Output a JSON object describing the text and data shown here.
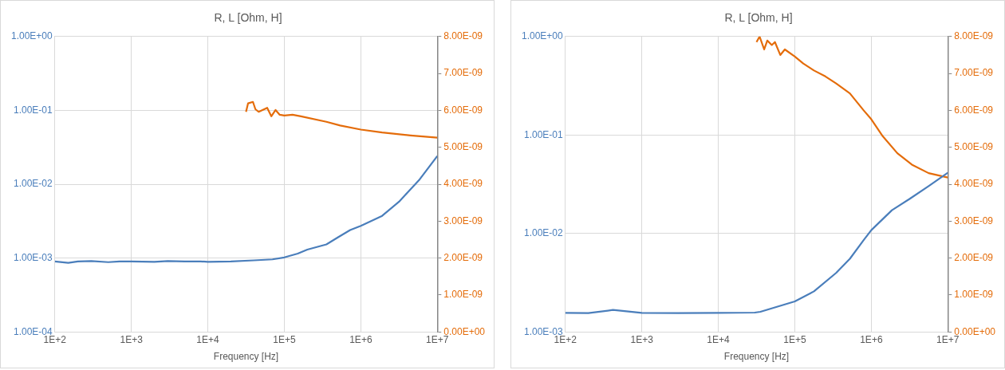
{
  "chart_data": [
    {
      "type": "line",
      "title": "R, L [Ohm, H]",
      "xlabel": "Frequency [Hz]",
      "log": "xy",
      "grid": true,
      "marker": "none",
      "xlim": [
        100,
        10000000
      ],
      "xticks": [
        {
          "value": 100,
          "label": "1E+2"
        },
        {
          "value": 1000,
          "label": "1E+3"
        },
        {
          "value": 10000,
          "label": "1E+4"
        },
        {
          "value": 100000,
          "label": "1E+5"
        },
        {
          "value": 1000000,
          "label": "1E+6"
        },
        {
          "value": 10000000,
          "label": "1E+7"
        }
      ],
      "ylim": [
        0.0001,
        1
      ],
      "yticks": [
        {
          "value": 0.0001,
          "label": "1.00E-04"
        },
        {
          "value": 0.001,
          "label": "1.00E-03"
        },
        {
          "value": 0.01,
          "label": "1.00E-02"
        },
        {
          "value": 0.1,
          "label": "1.00E-01"
        },
        {
          "value": 1,
          "label": "1.00E+00"
        }
      ],
      "y2lim": [
        0,
        8e-09
      ],
      "y2ticks": [
        {
          "value": 0,
          "label": "0.00E+00"
        },
        {
          "value": 1e-09,
          "label": "1.00E-09"
        },
        {
          "value": 2e-09,
          "label": "2.00E-09"
        },
        {
          "value": 3e-09,
          "label": "3.00E-09"
        },
        {
          "value": 4e-09,
          "label": "4.00E-09"
        },
        {
          "value": 5e-09,
          "label": "5.00E-09"
        },
        {
          "value": 6e-09,
          "label": "6.00E-09"
        },
        {
          "value": 7e-09,
          "label": "7.00E-09"
        },
        {
          "value": 8e-09,
          "label": "8.00E-09"
        }
      ],
      "series": [
        {
          "color": "#4a7ebb",
          "x": [
            100,
            150,
            200,
            300,
            500,
            700,
            1000,
            2000,
            3000,
            5000,
            8000,
            10000,
            20000,
            40000,
            70000,
            100000,
            150000,
            200000,
            355000,
            500000,
            725000,
            1000000,
            1900000,
            3160000,
            5750000,
            10000000
          ],
          "values": [
            0.0009,
            0.00086,
            0.0009,
            0.00091,
            0.00088,
            0.0009,
            0.0009,
            0.00089,
            0.00091,
            0.0009,
            0.0009,
            0.00089,
            0.0009,
            0.00093,
            0.00096,
            0.00102,
            0.00115,
            0.0013,
            0.00153,
            0.0019,
            0.00239,
            0.00273,
            0.00373,
            0.0058,
            0.0113,
            0.0241
          ]
        },
        {
          "color": "#e46c0a",
          "axis": "y2",
          "x": [
            31600,
            33600,
            38900,
            41900,
            46200,
            59700,
            67600,
            76900,
            87100,
            100000,
            128000,
            165000,
            355000,
            537000,
            1000000,
            1900000,
            4470000,
            10000000
          ],
          "values": [
            5.96e-09,
            6.19e-09,
            6.23e-09,
            6.03e-09,
            5.96e-09,
            6.07e-09,
            5.84e-09,
            6.01e-09,
            5.88e-09,
            5.86e-09,
            5.88e-09,
            5.84e-09,
            5.69e-09,
            5.59e-09,
            5.48e-09,
            5.4e-09,
            5.32e-09,
            5.26e-09
          ]
        }
      ]
    },
    {
      "type": "line",
      "title": "R, L [Ohm, H]",
      "xlabel": "Frequency [Hz]",
      "log": "xy",
      "grid": true,
      "marker": "none",
      "xlim": [
        100,
        10000000
      ],
      "xticks": [
        {
          "value": 100,
          "label": "1E+2"
        },
        {
          "value": 1000,
          "label": "1E+3"
        },
        {
          "value": 10000,
          "label": "1E+4"
        },
        {
          "value": 100000,
          "label": "1E+5"
        },
        {
          "value": 1000000,
          "label": "1E+6"
        },
        {
          "value": 10000000,
          "label": "1E+7"
        }
      ],
      "ylim": [
        0.001,
        1
      ],
      "yticks": [
        {
          "value": 0.001,
          "label": "1.00E-03"
        },
        {
          "value": 0.01,
          "label": "1.00E-02"
        },
        {
          "value": 0.1,
          "label": "1.00E-01"
        },
        {
          "value": 1,
          "label": "1.00E+00"
        }
      ],
      "y2lim": [
        0,
        8e-09
      ],
      "y2ticks": [
        {
          "value": 0,
          "label": "0.00E+00"
        },
        {
          "value": 1e-09,
          "label": "1.00E-09"
        },
        {
          "value": 2e-09,
          "label": "2.00E-09"
        },
        {
          "value": 3e-09,
          "label": "3.00E-09"
        },
        {
          "value": 4e-09,
          "label": "4.00E-09"
        },
        {
          "value": 5e-09,
          "label": "5.00E-09"
        },
        {
          "value": 6e-09,
          "label": "6.00E-09"
        },
        {
          "value": 7e-09,
          "label": "7.00E-09"
        },
        {
          "value": 8e-09,
          "label": "8.00E-09"
        }
      ],
      "series": [
        {
          "color": "#4a7ebb",
          "x": [
            100,
            200,
            420,
            1000,
            3000,
            10000,
            30000,
            35500,
            100000,
            178000,
            347000,
            525000,
            794000,
            1000000,
            1860000,
            3160000,
            5620000,
            10000000
          ],
          "values": [
            0.00156,
            0.00155,
            0.00167,
            0.00156,
            0.00155,
            0.00156,
            0.00157,
            0.0016,
            0.00204,
            0.00258,
            0.00397,
            0.00553,
            0.00854,
            0.0108,
            0.0172,
            0.0224,
            0.0303,
            0.0414
          ]
        },
        {
          "color": "#e46c0a",
          "axis": "y2",
          "x": [
            31600,
            34700,
            39800,
            43700,
            50100,
            55000,
            64600,
            74100,
            100000,
            129000,
            178000,
            251000,
            347000,
            525000,
            794000,
            1000000,
            1410000,
            2190000,
            3390000,
            5620000,
            10000000
          ],
          "values": [
            7.85e-09,
            8e-09,
            7.65e-09,
            7.89e-09,
            7.77e-09,
            7.85e-09,
            7.5e-09,
            7.65e-09,
            7.46e-09,
            7.27e-09,
            7.08e-09,
            6.92e-09,
            6.73e-09,
            6.46e-09,
            6e-09,
            5.76e-09,
            5.3e-09,
            4.84e-09,
            4.53e-09,
            4.3e-09,
            4.18e-09
          ]
        }
      ]
    }
  ]
}
